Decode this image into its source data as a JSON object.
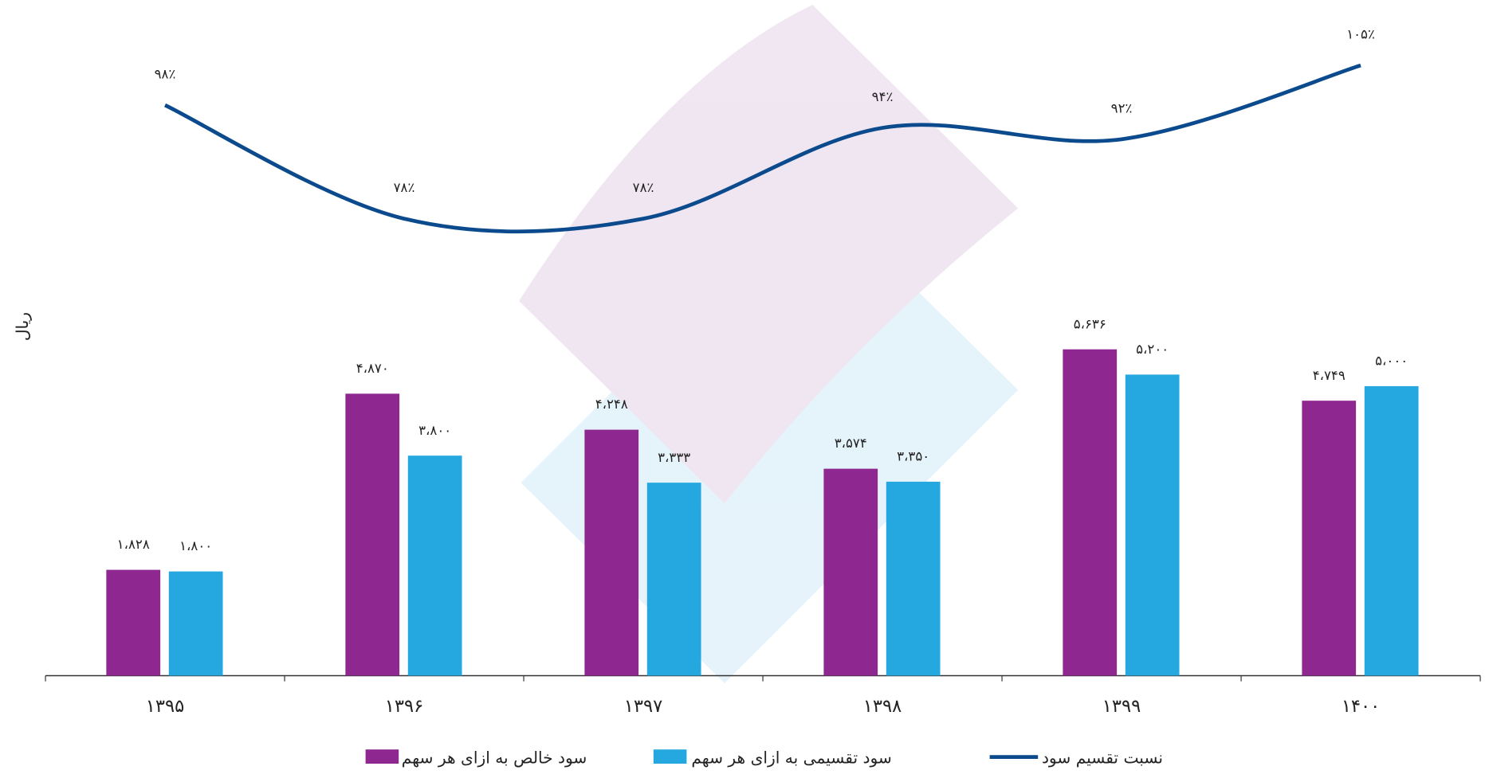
{
  "chart_data": {
    "type": "bar",
    "y_label": "ریال",
    "categories": [
      "۱۳۹۵",
      "۱۳۹۶",
      "۱۳۹۷",
      "۱۳۹۸",
      "۱۳۹۹",
      "۱۴۰۰"
    ],
    "ylim": [
      0,
      10000
    ],
    "y2lim": [
      60,
      110
    ],
    "series": [
      {
        "name": "سود خالص به ازای هر سهم",
        "color": "#8e278f",
        "type": "bar",
        "values": [
          1828,
          4870,
          4248,
          3574,
          5636,
          4749
        ],
        "value_labels": [
          "۱،۸۲۸",
          "۴،۸۷۰",
          "۴،۲۴۸",
          "۳،۵۷۴",
          "۵،۶۳۶",
          "۴،۷۴۹"
        ]
      },
      {
        "name": "سود تقسیمی به ازای هر سهم",
        "color": "#25a8e0",
        "type": "bar",
        "values": [
          1800,
          3800,
          3333,
          3350,
          5200,
          5000
        ],
        "value_labels": [
          "۱،۸۰۰",
          "۳،۸۰۰",
          "۳،۳۳۳",
          "۳،۳۵۰",
          "۵،۲۰۰",
          "۵،۰۰۰"
        ]
      },
      {
        "name": "نسبت تقسیم سود",
        "color": "#0b4a8c",
        "type": "line",
        "axis": "y2",
        "values": [
          98,
          78,
          78,
          94,
          92,
          105
        ],
        "value_labels": [
          "۹۸٪",
          "۷۸٪",
          "۷۸٪",
          "۹۴٪",
          "۹۲٪",
          "۱۰۵٪"
        ]
      }
    ]
  }
}
